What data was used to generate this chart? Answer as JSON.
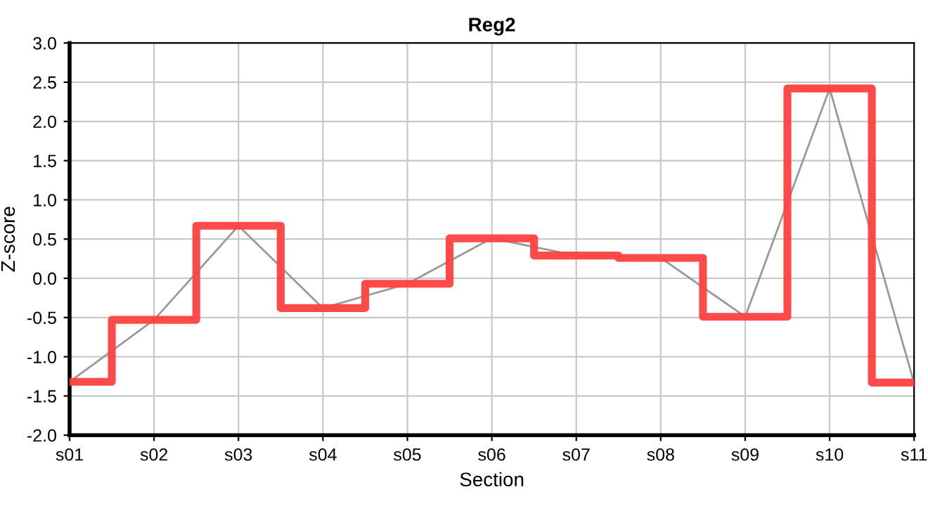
{
  "chart_data": {
    "type": "step",
    "title": "Reg2",
    "xlabel": "Section",
    "ylabel": "Z-score",
    "categories": [
      "s01",
      "s02",
      "s03",
      "s04",
      "s05",
      "s06",
      "s07",
      "s08",
      "s09",
      "s10",
      "s11"
    ],
    "series": [
      {
        "type": "line",
        "color": "#999999",
        "values": [
          -1.32,
          -0.53,
          0.67,
          -0.38,
          -0.07,
          0.51,
          0.29,
          0.26,
          -0.49,
          2.42,
          -1.33
        ]
      },
      {
        "color": "#ff4040",
        "values": [
          -1.32,
          -0.53,
          0.67,
          -0.38,
          -0.07,
          0.51,
          0.29,
          0.26,
          -0.49,
          2.42,
          -1.33
        ]
      }
    ],
    "ylim": [
      -2.0,
      3.0
    ],
    "yticks": [
      {
        "value": -2.0,
        "label": "-2.0"
      },
      {
        "value": -1.5,
        "label": "-1.5"
      },
      {
        "value": -1.0,
        "label": "-1.0"
      },
      {
        "value": -0.5,
        "label": "-0.5"
      },
      {
        "value": 0.0,
        "label": "0.0"
      },
      {
        "value": 0.5,
        "label": "0.5"
      },
      {
        "value": 1.0,
        "label": "1.0"
      },
      {
        "value": 1.5,
        "label": "1.5"
      },
      {
        "value": 2.0,
        "label": "2.0"
      },
      {
        "value": 2.5,
        "label": "2.5"
      },
      {
        "value": 3.0,
        "label": "3.0"
      }
    ],
    "grid": true,
    "legend": false
  }
}
